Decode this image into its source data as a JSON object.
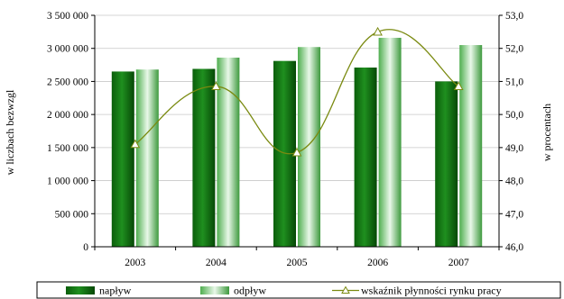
{
  "chart_data": {
    "type": "bar",
    "categories": [
      "2003",
      "2004",
      "2005",
      "2006",
      "2007"
    ],
    "series": [
      {
        "name": "napływ",
        "type": "bar",
        "axis": "left",
        "values": [
          2650000,
          2690000,
          2810000,
          2710000,
          2500000
        ]
      },
      {
        "name": "odpływ",
        "type": "bar",
        "axis": "left",
        "values": [
          2680000,
          2860000,
          3020000,
          3160000,
          3050000
        ]
      },
      {
        "name": "wskaźnik płynności rynku pracy",
        "type": "line",
        "axis": "right",
        "values": [
          49.1,
          50.85,
          48.85,
          52.5,
          50.85
        ]
      }
    ],
    "ylabel": "w liczbach bezwzgl",
    "y2label": "w procentach",
    "ylim": [
      0,
      3500000
    ],
    "y2lim": [
      46.0,
      53.0
    ],
    "yticks": [
      "0",
      "500 000",
      "1 000 000",
      "1 500 000",
      "2 000 000",
      "2 500 000",
      "3 000 000",
      "3 500 000"
    ],
    "y2ticks": [
      "46,0",
      "47,0",
      "48,0",
      "49,0",
      "50,0",
      "51,0",
      "52,0",
      "53,0"
    ],
    "grid": true,
    "legend": "bottom",
    "colors": {
      "inflow": "#0a6e0a",
      "outflow": "#9edb9e",
      "line": "#7a8a10"
    }
  }
}
